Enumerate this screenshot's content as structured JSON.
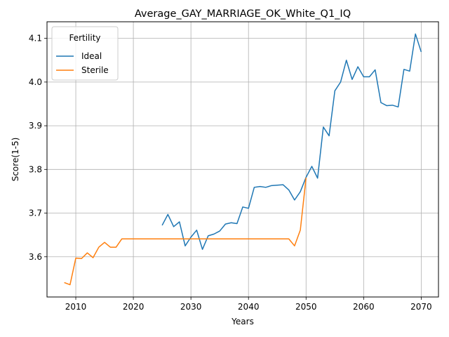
{
  "chart_data": {
    "type": "line",
    "title": "Average_GAY_MARRIAGE_OK_White_Q1_IQ",
    "xlabel": "Years",
    "ylabel": "Score(1-5)",
    "xlim": [
      2005,
      2073
    ],
    "ylim": [
      3.508,
      4.138
    ],
    "xticks": [
      2010,
      2020,
      2030,
      2040,
      2050,
      2060,
      2070
    ],
    "yticks": [
      3.6,
      3.7,
      3.8,
      3.9,
      4.0,
      4.1
    ],
    "xtick_labels": [
      "2010",
      "2020",
      "2030",
      "2040",
      "2050",
      "2060",
      "2070"
    ],
    "ytick_labels": [
      "3.6",
      "3.7",
      "3.8",
      "3.9",
      "4.0",
      "4.1"
    ],
    "grid": true,
    "legend": {
      "title": "Fertility",
      "placement": "top-left"
    },
    "series": [
      {
        "name": "Ideal",
        "color": "#1f77b4",
        "x": [
          2025,
          2026,
          2027,
          2028,
          2029,
          2030,
          2031,
          2032,
          2033,
          2034,
          2035,
          2036,
          2037,
          2038,
          2039,
          2040,
          2041,
          2042,
          2043,
          2044,
          2045,
          2046,
          2047,
          2048,
          2049,
          2050,
          2051,
          2052,
          2053,
          2054,
          2055,
          2056,
          2057,
          2058,
          2059,
          2060,
          2061,
          2062,
          2063,
          2064,
          2065,
          2066,
          2067,
          2068,
          2069,
          2070
        ],
        "y": [
          3.672,
          3.697,
          3.669,
          3.68,
          3.625,
          3.645,
          3.661,
          3.617,
          3.648,
          3.652,
          3.659,
          3.675,
          3.678,
          3.676,
          3.714,
          3.711,
          3.759,
          3.761,
          3.759,
          3.763,
          3.764,
          3.765,
          3.753,
          3.73,
          3.749,
          3.782,
          3.807,
          3.78,
          3.897,
          3.877,
          3.98,
          4.0,
          4.05,
          4.006,
          4.035,
          4.012,
          4.012,
          4.028,
          3.953,
          3.946,
          3.947,
          3.943,
          4.029,
          4.025,
          4.11,
          4.069
        ]
      },
      {
        "name": "Sterile",
        "color": "#ff7f0e",
        "x": [
          2008,
          2009,
          2010,
          2011,
          2012,
          2013,
          2014,
          2015,
          2016,
          2017,
          2018,
          2019,
          2020,
          2021,
          2022,
          2023,
          2024,
          2025,
          2026,
          2027,
          2028,
          2029,
          2030,
          2031,
          2032,
          2033,
          2034,
          2035,
          2036,
          2037,
          2038,
          2039,
          2040,
          2041,
          2042,
          2043,
          2044,
          2045,
          2046,
          2047,
          2048,
          2049,
          2050
        ],
        "y": [
          3.541,
          3.536,
          3.597,
          3.596,
          3.609,
          3.598,
          3.622,
          3.633,
          3.622,
          3.622,
          3.641,
          3.641,
          3.641,
          3.641,
          3.641,
          3.641,
          3.641,
          3.641,
          3.641,
          3.641,
          3.641,
          3.641,
          3.641,
          3.641,
          3.641,
          3.641,
          3.641,
          3.641,
          3.641,
          3.641,
          3.641,
          3.641,
          3.641,
          3.641,
          3.641,
          3.641,
          3.641,
          3.641,
          3.641,
          3.641,
          3.625,
          3.661,
          3.781
        ]
      }
    ]
  }
}
